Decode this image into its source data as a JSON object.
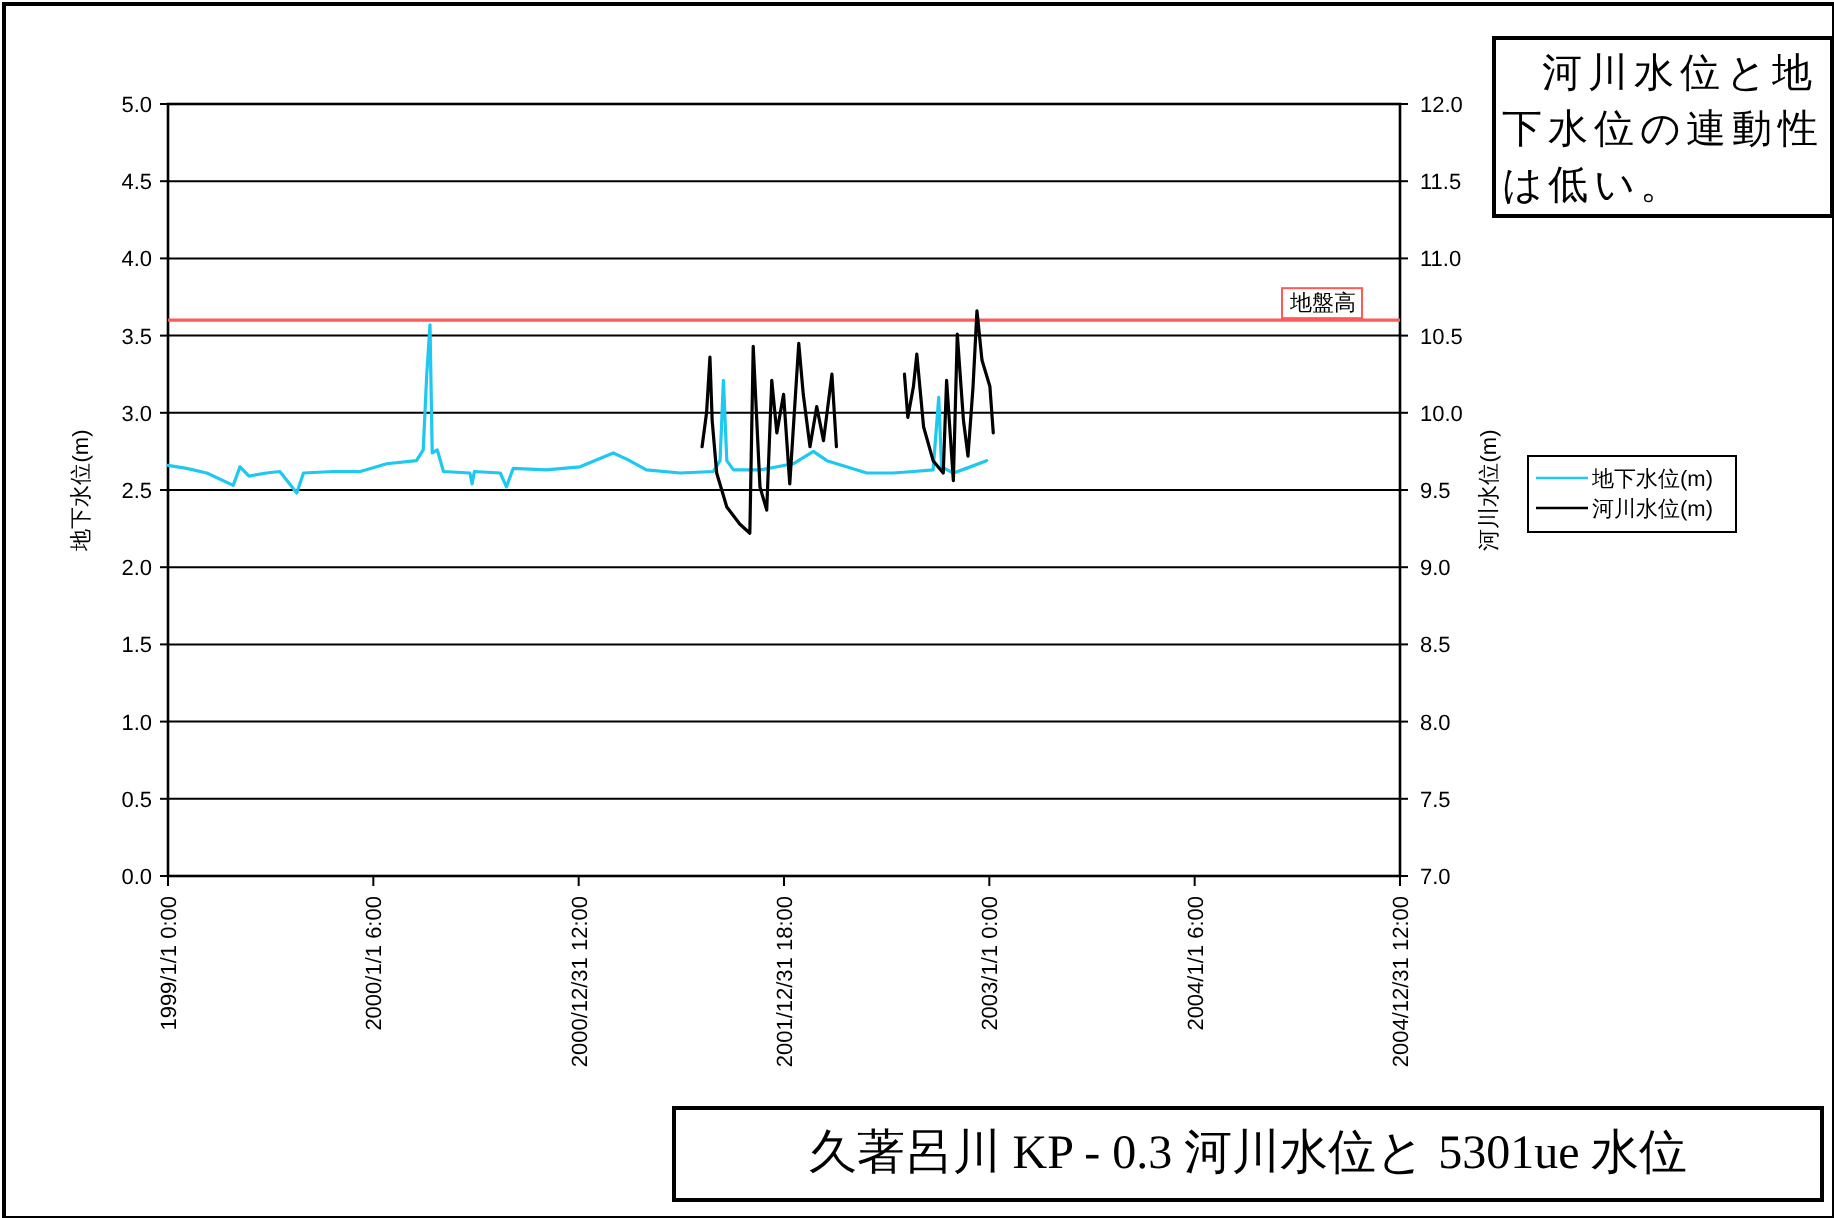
{
  "chart_data": {
    "type": "line",
    "title": "久著呂川 KP - 0.3 河川水位と 5301ue 水位",
    "ylabel": "地下水位(m)",
    "y2label": "河川水位(m)",
    "annotations": [
      "河川水位と地下水位の連動性は低い。"
    ],
    "xlim": [
      "1999-01-01T00:00",
      "2004-12-31T12:00"
    ],
    "xticks": [
      {
        "value": "1999-01-01T00:00",
        "label": "1999/1/1 0:00"
      },
      {
        "value": "2000-01-01T06:00",
        "label": "2000/1/1 6:00"
      },
      {
        "value": "2000-12-31T12:00",
        "label": "2000/12/31 12:00"
      },
      {
        "value": "2001-12-31T18:00",
        "label": "2001/12/31 18:00"
      },
      {
        "value": "2003-01-01T00:00",
        "label": "2003/1/1 0:00"
      },
      {
        "value": "2004-01-01T06:00",
        "label": "2004/1/1 6:00"
      },
      {
        "value": "2004-12-31T12:00",
        "label": "2004/12/31 12:00"
      }
    ],
    "ylim": [
      0,
      5
    ],
    "yticks": [
      {
        "value": 0,
        "label": "0.0"
      },
      {
        "value": 0.5,
        "label": "0.5"
      },
      {
        "value": 1,
        "label": "1.0"
      },
      {
        "value": 1.5,
        "label": "1.5"
      },
      {
        "value": 2,
        "label": "2.0"
      },
      {
        "value": 2.5,
        "label": "2.5"
      },
      {
        "value": 3,
        "label": "3.0"
      },
      {
        "value": 3.5,
        "label": "3.5"
      },
      {
        "value": 4,
        "label": "4.0"
      },
      {
        "value": 4.5,
        "label": "4.5"
      },
      {
        "value": 5,
        "label": "5.0"
      }
    ],
    "y2lim": [
      7,
      12
    ],
    "y2ticks": [
      {
        "value": 7,
        "label": "7.0"
      },
      {
        "value": 7.5,
        "label": "7.5"
      },
      {
        "value": 8,
        "label": "8.0"
      },
      {
        "value": 8.5,
        "label": "8.5"
      },
      {
        "value": 9,
        "label": "9.0"
      },
      {
        "value": 9.5,
        "label": "9.5"
      },
      {
        "value": 10,
        "label": "10.0"
      },
      {
        "value": 10.5,
        "label": "10.5"
      },
      {
        "value": 11,
        "label": "11.0"
      },
      {
        "value": 11.5,
        "label": "11.5"
      },
      {
        "value": 12,
        "label": "12.0"
      }
    ],
    "grid": "y",
    "legend": "right",
    "marker": "none",
    "line_style": "solid",
    "ref_lines": [
      {
        "axis": "y",
        "value": 3.6,
        "label": "地盤高",
        "color": "#ff5a5a"
      }
    ],
    "series": [
      {
        "name": "地下水位(m)",
        "color": "#1ec8f0",
        "x": [
          "1999-01-01",
          "1999-02-03",
          "1999-03-11",
          "1999-04-27",
          "1999-05-09",
          "1999-05-25",
          "1999-06-25",
          "1999-07-19",
          "1999-08-18",
          "1999-08-30",
          "1999-10-22",
          "1999-12-09",
          "2000-01-25",
          "2000-03-18",
          "2000-03-30",
          "2000-04-05",
          "2000-04-11",
          "2000-04-15",
          "2000-04-24",
          "2000-05-05",
          "2000-06-21",
          "2000-06-25",
          "2000-06-29",
          "2000-08-14",
          "2000-08-25",
          "2000-09-06",
          "2000-11-04",
          "2001-01-03",
          "2001-03-03",
          "2001-03-27",
          "2001-05-01",
          "2001-06-30",
          "2001-08-28",
          "2001-09-09",
          "2001-09-15",
          "2001-09-21",
          "2001-10-03",
          "2001-11-19",
          "2002-01-17",
          "2002-02-22",
          "2002-03-18",
          "2002-04-22",
          "2002-05-28",
          "2002-07-14",
          "2002-08-19",
          "2002-09-23",
          "2002-10-03",
          "2002-10-08",
          "2002-10-29",
          "2002-11-21",
          "2002-12-27"
        ],
        "values": [
          2.66,
          2.64,
          2.61,
          2.53,
          2.65,
          2.59,
          2.61,
          2.62,
          2.48,
          2.61,
          2.62,
          2.62,
          2.67,
          2.69,
          2.76,
          3.23,
          3.57,
          2.74,
          2.76,
          2.62,
          2.61,
          2.54,
          2.62,
          2.61,
          2.52,
          2.64,
          2.63,
          2.65,
          2.74,
          2.7,
          2.63,
          2.61,
          2.62,
          2.69,
          3.21,
          2.69,
          2.63,
          2.63,
          2.67,
          2.75,
          2.69,
          2.65,
          2.61,
          2.61,
          2.62,
          2.63,
          3.1,
          2.65,
          2.61,
          2.64,
          2.69
        ]
      },
      {
        "name": "河川水位(m)",
        "color": "#000000",
        "axis": "y2",
        "x": [
          "2001-08-08",
          "2001-08-16",
          "2001-08-22",
          "2001-08-26",
          "2001-09-03",
          "2001-09-21",
          "2001-10-14",
          "2001-11-01",
          "2001-11-07",
          "2001-11-19",
          "2001-12-01",
          "2001-12-10",
          "2001-12-19",
          "2001-12-31",
          "2002-01-11",
          "2002-01-27",
          "2002-02-04",
          "2002-02-16",
          "2002-02-28",
          "2002-03-12",
          "2002-03-27",
          "2002-04-04",
          "2002-06-01",
          "2002-08-03",
          "2002-08-09",
          "2002-08-19",
          "2002-08-25",
          "2002-09-06",
          "2002-09-23",
          "2002-10-11",
          "2002-10-17",
          "2002-10-29",
          "2002-11-05",
          "2002-11-16",
          "2002-11-24",
          "2002-12-03",
          "2002-12-10",
          "2002-12-19",
          "2003-01-02",
          "2003-01-08"
        ],
        "values": [
          9.78,
          10.0,
          10.36,
          9.95,
          9.61,
          9.39,
          9.28,
          9.22,
          10.43,
          9.52,
          9.37,
          10.21,
          9.87,
          10.12,
          9.54,
          10.45,
          10.12,
          9.78,
          10.04,
          9.82,
          10.25,
          9.78,
          null,
          10.25,
          9.97,
          10.17,
          10.38,
          9.91,
          9.69,
          9.61,
          10.21,
          9.56,
          10.51,
          9.95,
          9.72,
          10.17,
          10.66,
          10.34,
          10.17,
          9.87
        ]
      }
    ]
  }
}
